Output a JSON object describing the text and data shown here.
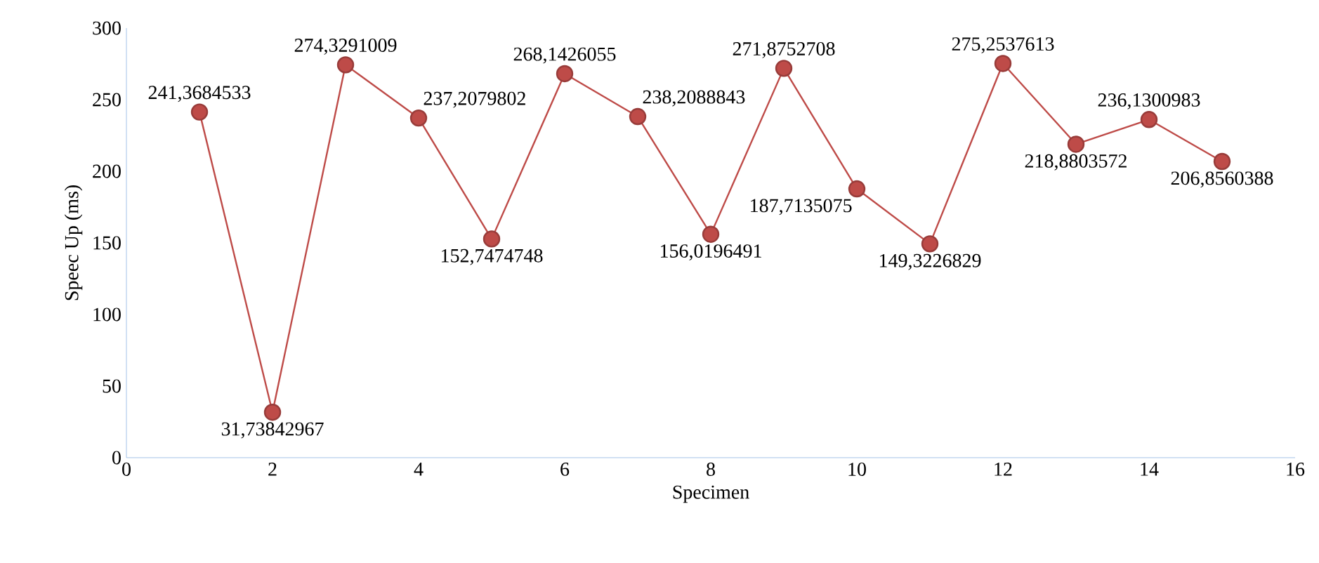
{
  "chart_data": {
    "type": "line",
    "xlabel": "Specimen",
    "ylabel": "Speec Up (ms)",
    "x": [
      1,
      2,
      3,
      4,
      5,
      6,
      7,
      8,
      9,
      10,
      11,
      12,
      13,
      14,
      15
    ],
    "values": [
      241.3684533,
      31.73842967,
      274.3291009,
      237.2079802,
      152.7474748,
      268.1426055,
      238.2088843,
      156.0196491,
      271.8752708,
      187.7135075,
      149.3226829,
      275.2537613,
      218.8803572,
      236.1300983,
      206.8560388
    ],
    "value_labels": [
      "241,3684533",
      "31,73842967",
      "274,3291009",
      "237,2079802",
      "152,7474748",
      "268,1426055",
      "238,2088843",
      "156,0196491",
      "271,8752708",
      "187,7135075",
      "149,3226829",
      "275,2537613",
      "218,8803572",
      "236,1300983",
      "206,8560388"
    ],
    "color": "#be4b48",
    "marker": "circle",
    "line_style": "solid",
    "xlim": [
      0,
      16
    ],
    "xticks": [
      0,
      2,
      4,
      6,
      8,
      10,
      12,
      14,
      16
    ],
    "ylim": [
      0,
      300
    ],
    "yticks": [
      0,
      50,
      100,
      150,
      200,
      250,
      300
    ],
    "grid": false
  }
}
